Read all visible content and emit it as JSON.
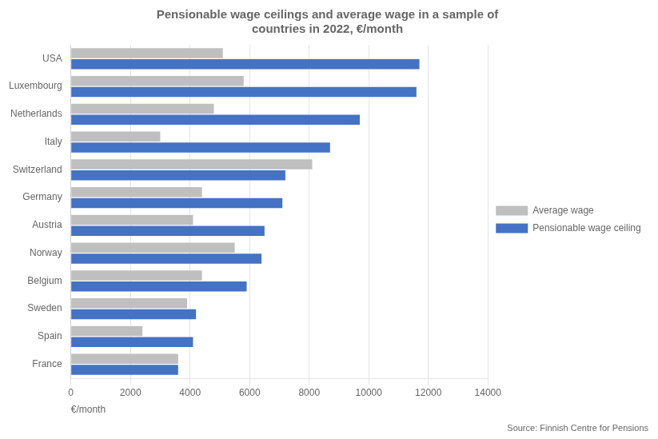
{
  "chart_data": {
    "type": "bar",
    "orientation": "horizontal",
    "title": "Pensionable wage ceilings and average wage in a sample of\ncountries in 2022, €/month",
    "xlabel": "€/month",
    "annotation": "Source: Finnish Centre for Pensions",
    "categories": [
      "France",
      "Spain",
      "Sweden",
      "Belgium",
      "Norway",
      "Austria",
      "Germany",
      "Switzerland",
      "Italy",
      "Netherlands",
      "Luxembourg",
      "USA"
    ],
    "series": [
      {
        "name": "Average wage",
        "color": "#bfbfbf",
        "values": [
          3600,
          2400,
          3900,
          4400,
          5500,
          4100,
          4400,
          8100,
          3000,
          4800,
          5800,
          5100
        ]
      },
      {
        "name": "Pensionable wage ceiling",
        "color": "#4472c4",
        "values": [
          3600,
          4100,
          4200,
          5900,
          6400,
          6500,
          7100,
          7200,
          8700,
          9700,
          11600,
          11700
        ]
      }
    ],
    "xlim": [
      0,
      14000
    ],
    "xticks": [
      0,
      2000,
      4000,
      6000,
      8000,
      10000,
      12000,
      14000
    ],
    "grid": "x",
    "legend": "right"
  }
}
